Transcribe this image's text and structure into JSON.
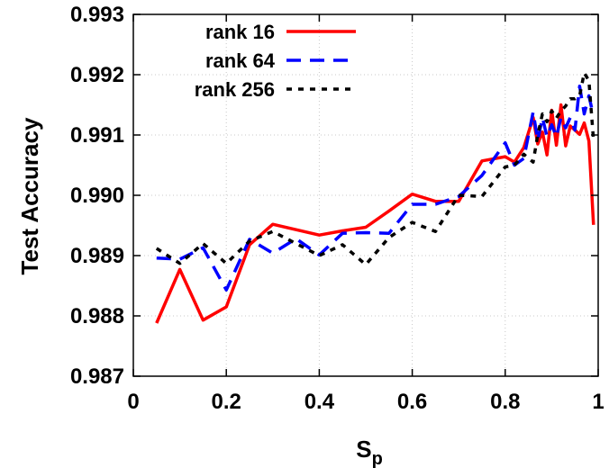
{
  "chart_data": {
    "type": "line",
    "title": "",
    "xlabel": "S",
    "xlabel_sub": "p",
    "ylabel": "Test Accuracy",
    "xlim": [
      0,
      1
    ],
    "ylim": [
      0.987,
      0.993
    ],
    "xticks": [
      "0",
      "0.2",
      "0.4",
      "0.6",
      "0.8",
      "1"
    ],
    "yticks": [
      "0.987",
      "0.988",
      "0.989",
      "0.990",
      "0.991",
      "0.992",
      "0.993"
    ],
    "grid": true,
    "legend_position": "top-left",
    "series": [
      {
        "name": "rank 16",
        "color": "#ff0000",
        "dash": "solid",
        "x": [
          0.05,
          0.1,
          0.15,
          0.2,
          0.25,
          0.3,
          0.35,
          0.4,
          0.45,
          0.5,
          0.55,
          0.6,
          0.65,
          0.7,
          0.75,
          0.8,
          0.82,
          0.84,
          0.86,
          0.87,
          0.88,
          0.89,
          0.9,
          0.91,
          0.92,
          0.93,
          0.94,
          0.95,
          0.96,
          0.97,
          0.98,
          0.99
        ],
        "y": [
          0.98788,
          0.98877,
          0.98793,
          0.98815,
          0.98918,
          0.98952,
          0.98943,
          0.98934,
          0.98941,
          0.98947,
          0.98974,
          0.99002,
          0.9899,
          0.9899,
          0.99057,
          0.99064,
          0.99055,
          0.99079,
          0.99129,
          0.99085,
          0.99105,
          0.99067,
          0.99141,
          0.99083,
          0.9915,
          0.99082,
          0.99115,
          0.99108,
          0.99101,
          0.9912,
          0.9909,
          0.98951
        ]
      },
      {
        "name": "rank 64",
        "color": "#0000ff",
        "dash": "long-dash",
        "x": [
          0.05,
          0.1,
          0.15,
          0.2,
          0.25,
          0.3,
          0.35,
          0.4,
          0.45,
          0.5,
          0.55,
          0.6,
          0.65,
          0.7,
          0.75,
          0.8,
          0.82,
          0.84,
          0.86,
          0.87,
          0.88,
          0.89,
          0.9,
          0.91,
          0.92,
          0.93,
          0.94,
          0.95,
          0.96,
          0.97,
          0.98,
          0.99
        ],
        "y": [
          0.98896,
          0.98894,
          0.98913,
          0.98843,
          0.98927,
          0.98904,
          0.98928,
          0.98901,
          0.98937,
          0.98938,
          0.98937,
          0.98985,
          0.98985,
          0.98998,
          0.99033,
          0.99087,
          0.9905,
          0.99061,
          0.99138,
          0.99091,
          0.99129,
          0.99097,
          0.99117,
          0.99097,
          0.99129,
          0.99112,
          0.99129,
          0.99108,
          0.99181,
          0.99135,
          0.99165,
          0.99131
        ]
      },
      {
        "name": "rank 256",
        "color": "#000000",
        "dash": "short-dash",
        "x": [
          0.05,
          0.1,
          0.15,
          0.2,
          0.25,
          0.3,
          0.35,
          0.4,
          0.45,
          0.5,
          0.55,
          0.6,
          0.65,
          0.7,
          0.75,
          0.8,
          0.82,
          0.84,
          0.86,
          0.87,
          0.88,
          0.89,
          0.9,
          0.91,
          0.92,
          0.93,
          0.94,
          0.95,
          0.96,
          0.97,
          0.98,
          0.99
        ],
        "y": [
          0.98912,
          0.98887,
          0.9892,
          0.98887,
          0.98924,
          0.9894,
          0.9892,
          0.989,
          0.98918,
          0.98885,
          0.9893,
          0.98955,
          0.9894,
          0.99,
          0.98998,
          0.99047,
          0.9905,
          0.99068,
          0.99055,
          0.991,
          0.99135,
          0.99122,
          0.9914,
          0.99128,
          0.9914,
          0.99148,
          0.9916,
          0.9916,
          0.99165,
          0.99203,
          0.9919,
          0.99092
        ]
      }
    ]
  }
}
